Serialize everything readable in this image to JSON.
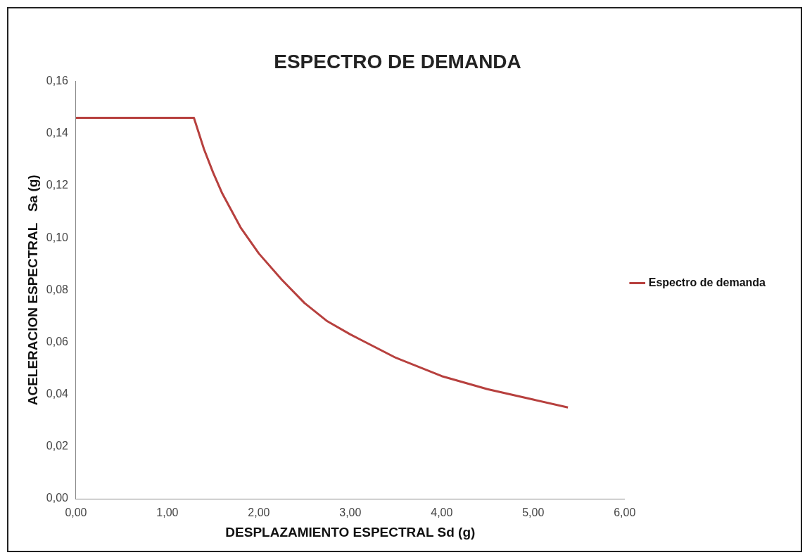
{
  "chart_data": {
    "type": "line",
    "title": "ESPECTRO DE DEMANDA",
    "xlabel": "DESPLAZAMIENTO ESPECTRAL Sd (g)",
    "ylabel": "ACELERACION ESPECTRAL   Sa (g)",
    "x": [
      0,
      1.29,
      1.4,
      1.5,
      1.6,
      1.8,
      2.0,
      2.25,
      2.5,
      2.75,
      3.0,
      3.5,
      4.0,
      4.5,
      5.0,
      5.38
    ],
    "series": [
      {
        "name": "Espectro de demanda",
        "color": "#b7403e",
        "values": [
          0.146,
          0.146,
          0.134,
          0.125,
          0.117,
          0.104,
          0.094,
          0.084,
          0.075,
          0.068,
          0.063,
          0.054,
          0.047,
          0.042,
          0.038,
          0.035
        ]
      }
    ],
    "xlim": [
      0,
      6
    ],
    "xticks": [
      {
        "value": 0,
        "label": "0,00"
      },
      {
        "value": 1,
        "label": "1,00"
      },
      {
        "value": 2,
        "label": "2,00"
      },
      {
        "value": 3,
        "label": "3,00"
      },
      {
        "value": 4,
        "label": "4,00"
      },
      {
        "value": 5,
        "label": "5,00"
      },
      {
        "value": 6,
        "label": "6,00"
      }
    ],
    "ylim": [
      0,
      0.16
    ],
    "yticks": [
      {
        "value": 0,
        "label": "0,00"
      },
      {
        "value": 0.02,
        "label": "0,02"
      },
      {
        "value": 0.04,
        "label": "0,04"
      },
      {
        "value": 0.06,
        "label": "0,06"
      },
      {
        "value": 0.08,
        "label": "0,08"
      },
      {
        "value": 0.1,
        "label": "0,10"
      },
      {
        "value": 0.12,
        "label": "0,12"
      },
      {
        "value": 0.14,
        "label": "0,14"
      },
      {
        "value": 0.16,
        "label": "0,16"
      }
    ],
    "grid": false,
    "legend": "right",
    "marker": "none",
    "line_style": "solid"
  }
}
